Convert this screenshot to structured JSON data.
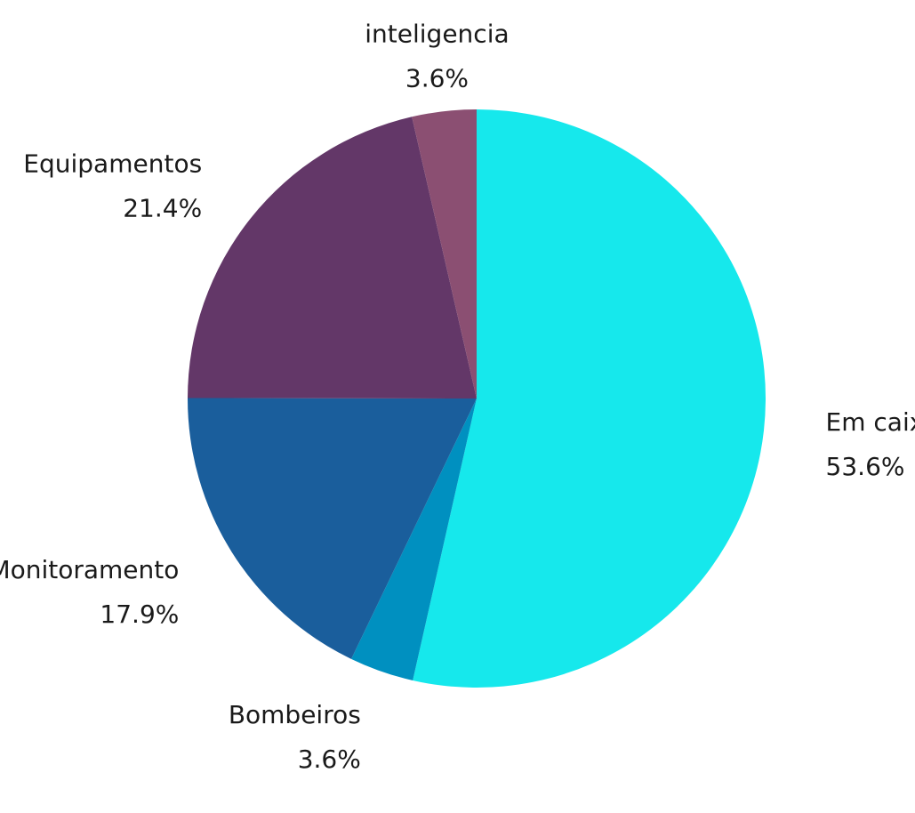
{
  "chart_data": {
    "type": "pie",
    "title": "",
    "start": "top",
    "direction": "clockwise",
    "legend": "none",
    "slices": [
      {
        "name": "Em caixa",
        "value": 53.6,
        "label": "53.6%",
        "color": "#16e8ec"
      },
      {
        "name": "Bombeiros",
        "value": 3.6,
        "label": "3.6%",
        "color": "#0090c0"
      },
      {
        "name": "Monitoramento",
        "value": 17.9,
        "label": "17.9%",
        "color": "#1a5e9c"
      },
      {
        "name": "Equipamentos",
        "value": 21.4,
        "label": "21.4%",
        "color": "#633768"
      },
      {
        "name": "inteligencia",
        "value": 3.6,
        "label": "3.6%",
        "color": "#8b4f72"
      }
    ]
  }
}
